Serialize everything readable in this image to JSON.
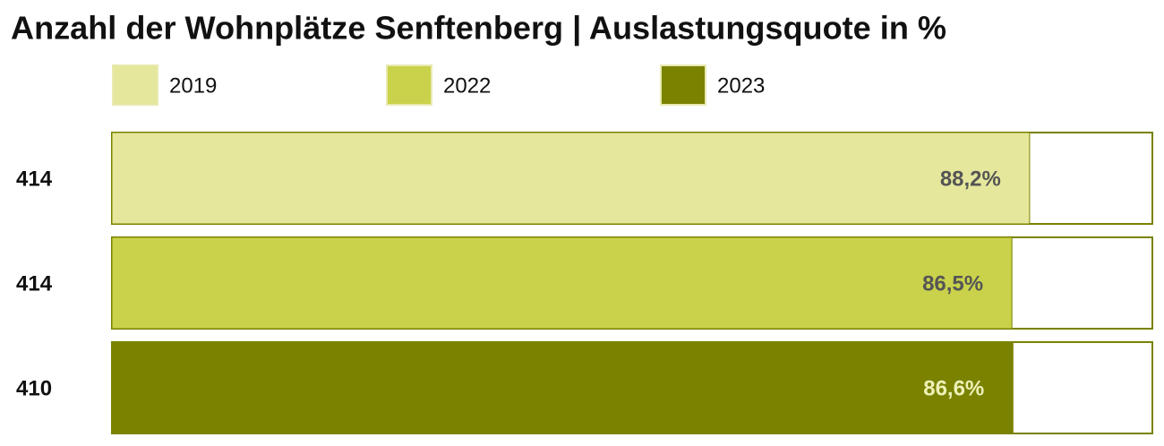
{
  "chart_data": {
    "type": "bar",
    "orientation": "horizontal",
    "title": "Anzahl der Wohnplätze Senftenberg | Auslastungsquote in %",
    "categories": [
      "414",
      "414",
      "410"
    ],
    "series": [
      {
        "name": "2019",
        "color": "#e5e89c",
        "values": [
          88.2,
          null,
          null
        ],
        "value_labels": [
          "88,2%",
          null,
          null
        ]
      },
      {
        "name": "2022",
        "color": "#c9d24a",
        "values": [
          null,
          86.5,
          null
        ],
        "value_labels": [
          null,
          "86,5%",
          null
        ]
      },
      {
        "name": "2023",
        "color": "#7a8200",
        "values": [
          null,
          null,
          86.6
        ],
        "value_labels": [
          null,
          null,
          "86,6%"
        ]
      }
    ],
    "xlim": [
      0,
      100
    ],
    "frame_color": "#7a8200",
    "legend": "top"
  }
}
